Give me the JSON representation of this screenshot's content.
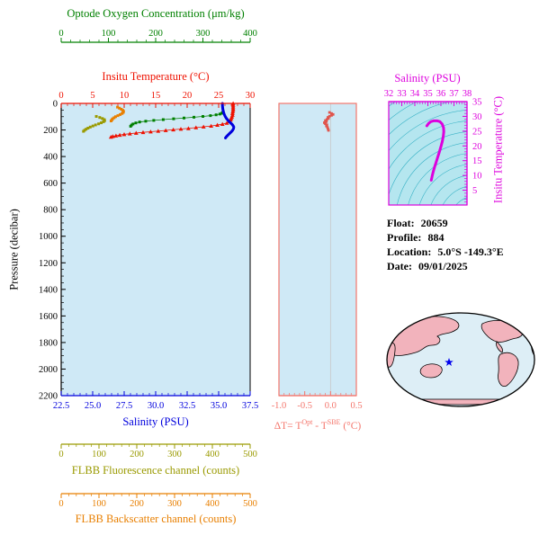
{
  "palette": {
    "oxygen": "#008000",
    "temperature": "#ee1100",
    "salinity": "#0000dd",
    "fluorescence": "#9a9a00",
    "backscatter": "#e87f00",
    "delta_axis": "#f4766c",
    "delta_points": "#e0544c",
    "magenta": "#dd00dd",
    "black": "#000000",
    "plot_bg": "#cfe9f6",
    "ts_bg": "#b5e6ef",
    "contour": "#38b2c6",
    "map_ocean": "#ddeef6",
    "map_land": "#f2b3bc",
    "star": "#0000ee",
    "zero_grid": "#c8c8c8"
  },
  "info": {
    "float_label": "Float:",
    "float_value": "20659",
    "profile_label": "Profile:",
    "profile_value": "884",
    "location_label": "Location:",
    "location_value": "5.0°S  -149.3°E",
    "date_label": "Date:",
    "date_value": "09/01/2025"
  },
  "chart_data": [
    {
      "id": "main_profile",
      "type": "scatter",
      "y_axis": {
        "label": "Pressure (decibar)",
        "range": [
          0,
          2200
        ],
        "inverted": true,
        "minor_step": 50,
        "tick_labels": [
          "0",
          "200",
          "400",
          "600",
          "800",
          "1000",
          "1200",
          "1400",
          "1600",
          "1800",
          "2000",
          "2200"
        ]
      },
      "x_axes": [
        {
          "id": "temperature",
          "label": "Insitu Temperature (°C)",
          "range": [
            0,
            30
          ],
          "minor_step": 1,
          "position": "top",
          "tick_labels": [
            "0",
            "5",
            "10",
            "15",
            "20",
            "25",
            "30"
          ]
        },
        {
          "id": "oxygen",
          "label": "Optode Oxygen Concentration (μm/kg)",
          "range": [
            0,
            400
          ],
          "minor_step": 20,
          "position": "top-detached",
          "tick_labels": [
            "0",
            "100",
            "200",
            "300",
            "400"
          ]
        },
        {
          "id": "salinity",
          "label": "Salinity (PSU)",
          "range": [
            22.5,
            37.5
          ],
          "minor_step": 0.5,
          "position": "bottom",
          "tick_labels": [
            "22.5",
            "25.0",
            "27.5",
            "30.0",
            "32.5",
            "35.0",
            "37.5"
          ]
        },
        {
          "id": "fluorescence",
          "label": "FLBB Fluorescence channel (counts)",
          "range": [
            0,
            500
          ],
          "minor_step": 20,
          "position": "bottom-detached-1",
          "tick_labels": [
            "0",
            "100",
            "200",
            "300",
            "400",
            "500"
          ]
        },
        {
          "id": "backscatter",
          "label": "FLBB Backscatter channel (counts)",
          "range": [
            0,
            500
          ],
          "minor_step": 20,
          "position": "bottom-detached-2",
          "tick_labels": [
            "0",
            "100",
            "200",
            "300",
            "400",
            "500"
          ]
        }
      ],
      "series": [
        {
          "name": "flbb-fluorescence",
          "axis": "fluorescence",
          "marker": "square",
          "points": [
            [
              93,
              98
            ],
            [
              102,
              106
            ],
            [
              109,
              114
            ],
            [
              114,
              122
            ],
            [
              115,
              130
            ],
            [
              112,
              138
            ],
            [
              106,
              146
            ],
            [
              99,
              154
            ],
            [
              91,
              162
            ],
            [
              84,
              170
            ],
            [
              77,
              178
            ],
            [
              71,
              186
            ],
            [
              66,
              194
            ],
            [
              62,
              202
            ],
            [
              59,
              210
            ]
          ]
        },
        {
          "name": "flbb-backscatter",
          "axis": "backscatter",
          "marker": "square",
          "points": [
            [
              149,
              28
            ],
            [
              154,
              36
            ],
            [
              159,
              44
            ],
            [
              163,
              52
            ],
            [
              165,
              60
            ],
            [
              164,
              68
            ],
            [
              161,
              76
            ],
            [
              156,
              84
            ],
            [
              150,
              92
            ],
            [
              144,
              100
            ],
            [
              140,
              108
            ],
            [
              136,
              116
            ],
            [
              134,
              124
            ],
            [
              132,
              132
            ]
          ]
        },
        {
          "name": "optode-oxygen",
          "axis": "oxygen",
          "marker": "square",
          "line": true,
          "points": [
            [
              342,
              68
            ],
            [
              340,
              74
            ],
            [
              336,
              80
            ],
            [
              328,
              86
            ],
            [
              316,
              92
            ],
            [
              300,
              98
            ],
            [
              281,
              104
            ],
            [
              260,
              110
            ],
            [
              238,
              116
            ],
            [
              216,
              122
            ],
            [
              196,
              128
            ],
            [
              179,
              134
            ],
            [
              166,
              140
            ],
            [
              158,
              147
            ],
            [
              152,
              155
            ],
            [
              149,
              163
            ],
            [
              147,
              172
            ]
          ]
        },
        {
          "name": "insitu-temperature",
          "axis": "temperature",
          "marker": "triangle",
          "line": true,
          "points": [
            [
              27.3,
              0
            ],
            [
              27.3,
              12
            ],
            [
              27.3,
              25
            ],
            [
              27.3,
              38
            ],
            [
              27.3,
              50
            ],
            [
              27.25,
              62
            ],
            [
              27.2,
              75
            ],
            [
              27.2,
              88
            ],
            [
              27.1,
              100
            ],
            [
              27.0,
              112
            ],
            [
              26.9,
              124
            ],
            [
              26.7,
              136
            ],
            [
              26.3,
              148
            ],
            [
              25.6,
              156
            ],
            [
              24.8,
              163
            ],
            [
              23.8,
              170
            ],
            [
              22.6,
              176
            ],
            [
              21.4,
              182
            ],
            [
              20.2,
              188
            ],
            [
              19.0,
              193
            ],
            [
              17.8,
              198
            ],
            [
              16.6,
              203
            ],
            [
              15.4,
              208
            ],
            [
              14.2,
              213
            ],
            [
              13.0,
              218
            ],
            [
              11.9,
              223
            ],
            [
              10.9,
              228
            ],
            [
              10.0,
              233
            ],
            [
              9.3,
              238
            ],
            [
              8.7,
              243
            ],
            [
              8.2,
              248
            ],
            [
              7.9,
              253
            ]
          ]
        },
        {
          "name": "salinity",
          "axis": "salinity",
          "marker": "thickline",
          "line": true,
          "points": [
            [
              35.3,
              0
            ],
            [
              35.3,
              14
            ],
            [
              35.31,
              28
            ],
            [
              35.33,
              42
            ],
            [
              35.36,
              56
            ],
            [
              35.4,
              70
            ],
            [
              35.45,
              84
            ],
            [
              35.52,
              98
            ],
            [
              35.61,
              112
            ],
            [
              35.72,
              125
            ],
            [
              35.84,
              137
            ],
            [
              35.96,
              148
            ],
            [
              36.07,
              158
            ],
            [
              36.15,
              168
            ],
            [
              36.2,
              178
            ],
            [
              36.18,
              190
            ],
            [
              36.11,
              202
            ],
            [
              36.0,
              214
            ],
            [
              35.87,
              226
            ],
            [
              35.74,
              238
            ],
            [
              35.62,
              250
            ],
            [
              35.54,
              260
            ]
          ]
        }
      ]
    },
    {
      "id": "delta_t",
      "type": "scatter",
      "x_axis": {
        "label_parts": {
          "p1": "ΔT= T",
          "s1": "Opt",
          "p2": " - T",
          "s2": "SBE",
          "p3": " (°C)"
        },
        "range": [
          -1.0,
          0.5
        ],
        "minor_step": 0.1,
        "tick_labels": [
          "-1.0",
          "-0.5",
          "0.0",
          "0.5"
        ],
        "zero_line": 0.0
      },
      "y_axis": {
        "range": [
          0,
          2200
        ],
        "inverted": true
      },
      "series": [
        {
          "name": "delta-t",
          "marker": "square",
          "points": [
            [
              -0.02,
              68
            ],
            [
              0.02,
              76
            ],
            [
              0.05,
              83
            ],
            [
              0.02,
              90
            ],
            [
              -0.02,
              97
            ],
            [
              -0.05,
              105
            ],
            [
              -0.04,
              113
            ],
            [
              -0.07,
              121
            ],
            [
              -0.1,
              129
            ],
            [
              -0.08,
              137
            ],
            [
              -0.12,
              145
            ],
            [
              -0.1,
              153
            ],
            [
              -0.07,
              161
            ],
            [
              -0.08,
              170
            ],
            [
              -0.06,
              180
            ],
            [
              -0.05,
              191
            ],
            [
              -0.04,
              203
            ]
          ]
        }
      ]
    },
    {
      "id": "ts_diagram",
      "type": "line",
      "x_axis": {
        "label": "Salinity (PSU)",
        "range": [
          32,
          38
        ],
        "minor_step": 0.2,
        "position": "top",
        "tick_labels": [
          "32",
          "33",
          "34",
          "35",
          "36",
          "37",
          "38"
        ]
      },
      "y_axis": {
        "label": "Insitu Temperature (°C)",
        "range": [
          0,
          35
        ],
        "minor_step": 1,
        "position": "right",
        "tick_labels": [
          "5",
          "10",
          "15",
          "20",
          "25",
          "30",
          "35"
        ]
      },
      "contours": {
        "style": "isopycnal-arcs",
        "count": 13
      },
      "series": [
        {
          "name": "t-s-curve",
          "points": [
            [
              34.92,
              26.8
            ],
            [
              35.05,
              27.6
            ],
            [
              35.22,
              28.2
            ],
            [
              35.45,
              28.5
            ],
            [
              35.7,
              28.5
            ],
            [
              35.93,
              28.2
            ],
            [
              36.1,
              27.4
            ],
            [
              36.2,
              26.2
            ],
            [
              36.22,
              24.8
            ],
            [
              36.18,
              23.2
            ],
            [
              36.1,
              21.4
            ],
            [
              35.99,
              19.6
            ],
            [
              35.87,
              17.8
            ],
            [
              35.74,
              16.0
            ],
            [
              35.62,
              14.3
            ],
            [
              35.51,
              12.8
            ],
            [
              35.42,
              11.4
            ],
            [
              35.35,
              10.2
            ],
            [
              35.3,
              9.2
            ],
            [
              35.26,
              8.4
            ]
          ]
        }
      ]
    }
  ],
  "map": {
    "projection": "global-ellipse",
    "marker": "star"
  }
}
